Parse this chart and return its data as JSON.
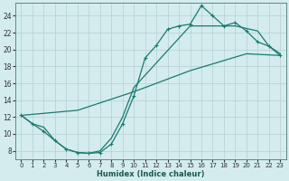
{
  "xlabel": "Humidex (Indice chaleur)",
  "bg_color": "#d4ecee",
  "grid_color": "#b8d4d8",
  "line_color": "#1a7a6e",
  "xlim": [
    -0.5,
    23.5
  ],
  "ylim": [
    7.0,
    25.5
  ],
  "xticks": [
    0,
    1,
    2,
    3,
    4,
    5,
    6,
    7,
    8,
    9,
    10,
    11,
    12,
    13,
    14,
    15,
    16,
    17,
    18,
    19,
    20,
    21,
    22,
    23
  ],
  "yticks": [
    8,
    10,
    12,
    14,
    16,
    18,
    20,
    22,
    24
  ],
  "line1_x": [
    0,
    1,
    2,
    3,
    4,
    5,
    6,
    7,
    8,
    9,
    10,
    11,
    12,
    13,
    14,
    15,
    16,
    17,
    18,
    19,
    20,
    21,
    22,
    23
  ],
  "line1_y": [
    12.2,
    11.2,
    10.3,
    9.2,
    8.2,
    7.8,
    7.7,
    7.8,
    8.8,
    11.2,
    14.5,
    19.0,
    20.5,
    22.4,
    22.8,
    23.0,
    25.2,
    24.0,
    22.8,
    23.2,
    22.2,
    20.9,
    20.4,
    19.3
  ],
  "line2_x": [
    0,
    5,
    10,
    15,
    20,
    23
  ],
  "line2_y": [
    12.2,
    12.8,
    15.0,
    17.5,
    19.5,
    19.3
  ],
  "line3_x": [
    0,
    1,
    2,
    3,
    4,
    5,
    6,
    7,
    8,
    9,
    10,
    15,
    19,
    20,
    21,
    22,
    23
  ],
  "line3_y": [
    12.2,
    11.2,
    10.8,
    9.2,
    8.2,
    7.8,
    7.7,
    8.0,
    9.5,
    12.0,
    15.5,
    22.8,
    22.8,
    22.5,
    22.2,
    20.4,
    19.5
  ]
}
